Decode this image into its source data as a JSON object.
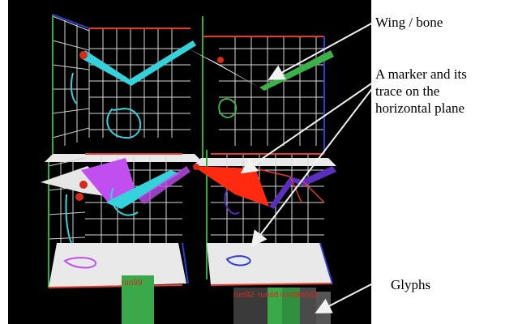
{
  "annotations": {
    "wing_bone": "Wing / bone",
    "marker_line1": "A marker and its",
    "marker_line2": "trace on the",
    "marker_line3": "horizontal plane",
    "glyphs": "Glyphs"
  },
  "glyph_labels": {
    "left": "run99",
    "right_1": "run92",
    "right_2": "run68",
    "right_3": "run59",
    "right_4": "run61"
  },
  "colors": {
    "background": "#000000",
    "grid_line": "#dddddd",
    "axis_red": "#e53b2a",
    "axis_green": "#2fae3a",
    "axis_blue": "#2a3fd1",
    "floor": "#e9e9e9",
    "wing_cyan": "#34d3dc",
    "wing_green": "#3bb14a",
    "wing_white": "#e6e6e6",
    "wing_magenta": "#c14ff0",
    "wing_red": "#ff2a10",
    "wing_purple": "#5a2fbf",
    "marker_red": "#d62a1a",
    "glyph_green": "#3aa94a",
    "glyph_gray": "#3a3a3a"
  },
  "icons": {
    "marker": "marker-sphere-icon",
    "arrow": "arrow-icon"
  }
}
